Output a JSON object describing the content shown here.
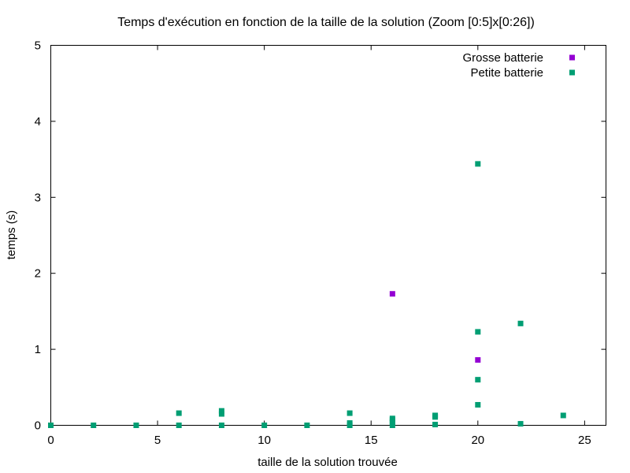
{
  "chart_data": {
    "type": "scatter",
    "title": "Temps d'exécution en fonction de la taille de la solution (Zoom [0:5]x[0:26])",
    "xlabel": "taille de la solution trouvée",
    "ylabel": "temps (s)",
    "xlim": [
      0,
      26
    ],
    "ylim": [
      0,
      5
    ],
    "xticks": [
      0,
      5,
      10,
      15,
      20,
      25
    ],
    "yticks": [
      0,
      1,
      2,
      3,
      4,
      5
    ],
    "grid": false,
    "legend_position": "top-right",
    "series": [
      {
        "name": "Grosse batterie",
        "color": "#9400d3",
        "points": [
          [
            16,
            1.73
          ],
          [
            20,
            0.86
          ]
        ]
      },
      {
        "name": "Petite batterie",
        "color": "#009e73",
        "points": [
          [
            0,
            0.0
          ],
          [
            2,
            0.0
          ],
          [
            4,
            0.0
          ],
          [
            6,
            0.0
          ],
          [
            6,
            0.16
          ],
          [
            8,
            0.0
          ],
          [
            8,
            0.15
          ],
          [
            8,
            0.19
          ],
          [
            10,
            0.0
          ],
          [
            12,
            0.0
          ],
          [
            14,
            0.0
          ],
          [
            14,
            0.03
          ],
          [
            14,
            0.16
          ],
          [
            16,
            0.0
          ],
          [
            16,
            0.04
          ],
          [
            16,
            0.07
          ],
          [
            16,
            0.09
          ],
          [
            18,
            0.01
          ],
          [
            18,
            0.11
          ],
          [
            18,
            0.13
          ],
          [
            20,
            0.27
          ],
          [
            20,
            0.6
          ],
          [
            20,
            1.23
          ],
          [
            20,
            3.44
          ],
          [
            22,
            0.02
          ],
          [
            22,
            1.34
          ],
          [
            24,
            0.13
          ]
        ]
      }
    ]
  }
}
